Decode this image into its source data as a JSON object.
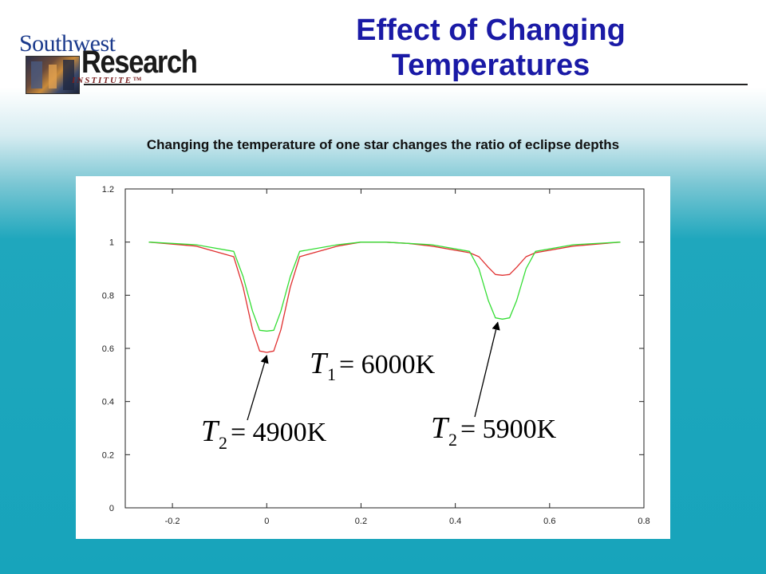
{
  "header": {
    "logo_top": "Southwest",
    "logo_main": "Research",
    "logo_sub": "INSTITUTE™",
    "title_line1": "Effect of Changing",
    "title_line2": "Temperatures"
  },
  "subtitle": "Changing the temperature of one star changes the ratio of eclipse depths",
  "colors": {
    "title": "#1a1aa6",
    "series_red": "#e03030",
    "series_green": "#33dd33"
  },
  "chart_data": {
    "type": "line",
    "title": "",
    "xlabel": "",
    "ylabel": "",
    "xlim": [
      -0.3,
      0.8
    ],
    "ylim": [
      0,
      1.2
    ],
    "x_ticks": [
      "-0.2",
      "0",
      "0.2",
      "0.4",
      "0.6",
      "0.8"
    ],
    "y_ticks": [
      "0",
      "0.2",
      "0.4",
      "0.6",
      "0.8",
      "1",
      "1.2"
    ],
    "grid": false,
    "series": [
      {
        "color": "#e03030",
        "x": [
          -0.25,
          -0.15,
          -0.07,
          -0.05,
          -0.03,
          -0.015,
          0.0,
          0.015,
          0.03,
          0.05,
          0.07,
          0.15,
          0.2,
          0.25,
          0.3,
          0.35,
          0.43,
          0.45,
          0.47,
          0.485,
          0.5,
          0.515,
          0.53,
          0.55,
          0.57,
          0.65,
          0.75
        ],
        "y": [
          1.0,
          0.985,
          0.945,
          0.83,
          0.67,
          0.59,
          0.585,
          0.59,
          0.67,
          0.83,
          0.945,
          0.985,
          1.0,
          1.0,
          0.995,
          0.985,
          0.96,
          0.945,
          0.905,
          0.878,
          0.875,
          0.878,
          0.905,
          0.945,
          0.96,
          0.985,
          1.0
        ]
      },
      {
        "color": "#33dd33",
        "x": [
          -0.25,
          -0.15,
          -0.07,
          -0.05,
          -0.03,
          -0.015,
          0.0,
          0.015,
          0.03,
          0.05,
          0.07,
          0.15,
          0.2,
          0.25,
          0.3,
          0.35,
          0.43,
          0.45,
          0.47,
          0.485,
          0.5,
          0.515,
          0.53,
          0.55,
          0.57,
          0.65,
          0.75
        ],
        "y": [
          1.0,
          0.99,
          0.965,
          0.87,
          0.74,
          0.668,
          0.665,
          0.668,
          0.74,
          0.87,
          0.965,
          0.99,
          1.0,
          1.0,
          0.995,
          0.99,
          0.965,
          0.9,
          0.78,
          0.715,
          0.71,
          0.715,
          0.78,
          0.9,
          0.965,
          0.99,
          1.0
        ]
      }
    ],
    "annotations": [
      {
        "label": "T1",
        "text": "= 6000K"
      },
      {
        "label": "T2",
        "text": "= 4900K",
        "points_to": {
          "x": 0.0,
          "y": 0.585
        }
      },
      {
        "label": "T2",
        "text": "= 5900K",
        "points_to": {
          "x": 0.49,
          "y": 0.71
        }
      }
    ]
  }
}
